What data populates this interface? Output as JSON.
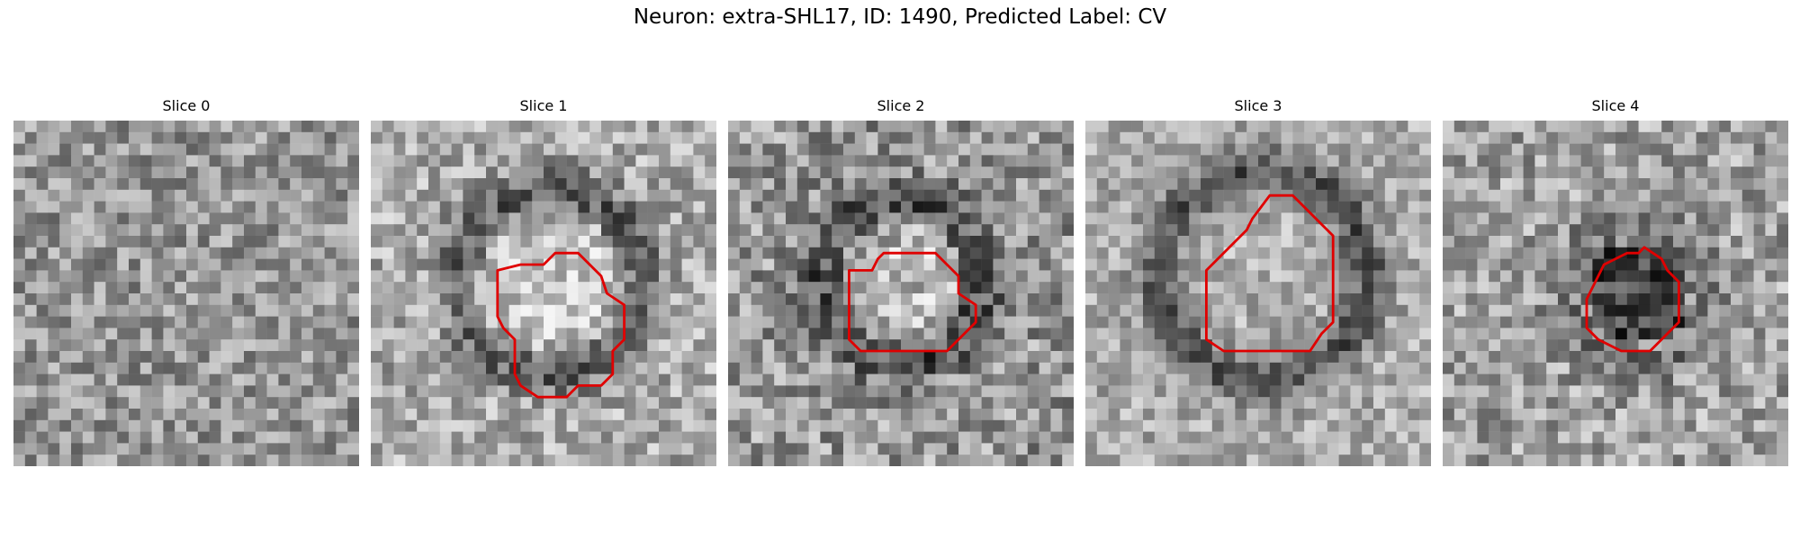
{
  "figure": {
    "title": "Neuron: extra-SHL17, ID: 1490, Predicted Label: CV"
  },
  "panels": [
    {
      "title": "Slice 0",
      "image": "noisy grayscale pixel grid",
      "has_contour": false,
      "contour_color": "#e00000"
    },
    {
      "title": "Slice 1",
      "image": "grayscale pixel grid with bright soma",
      "has_contour": true,
      "contour_color": "#e00000"
    },
    {
      "title": "Slice 2",
      "image": "grayscale pixel grid with bright soma",
      "has_contour": true,
      "contour_color": "#e00000"
    },
    {
      "title": "Slice 3",
      "image": "grayscale pixel grid with soma and dark ring",
      "has_contour": true,
      "contour_color": "#e00000"
    },
    {
      "title": "Slice 4",
      "image": "grayscale pixel grid with dark soma",
      "has_contour": true,
      "contour_color": "#e00000"
    }
  ]
}
